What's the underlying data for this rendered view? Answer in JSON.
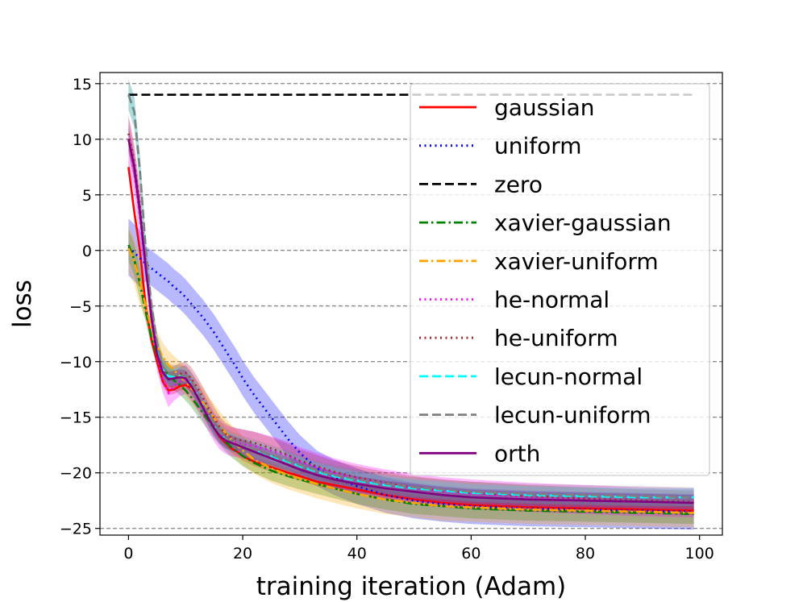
{
  "chart_data": {
    "type": "line",
    "title": "",
    "xlabel": "training iteration (Adam)",
    "ylabel": "loss",
    "xlim": [
      -5,
      104
    ],
    "ylim": [
      -25.6,
      16
    ],
    "x_ticks": [
      0,
      20,
      40,
      60,
      80,
      100
    ],
    "y_ticks": [
      15,
      10,
      5,
      0,
      -5,
      -10,
      -15,
      -20,
      -25
    ],
    "grid": "y-dashed",
    "legend_position": "upper-right",
    "x": [
      0,
      1,
      2,
      3,
      4,
      5,
      6,
      7,
      8,
      9,
      10,
      11,
      12,
      13,
      14,
      15,
      16,
      17,
      18,
      19,
      20,
      22,
      25,
      28,
      30,
      33,
      36,
      40,
      45,
      50,
      55,
      60,
      70,
      80,
      90,
      99
    ],
    "series": [
      {
        "name": "gaussian",
        "color": "#ff0000",
        "dash": "solid",
        "band": 0.4,
        "values": [
          7.5,
          3.5,
          0,
          -5,
          -8,
          -10,
          -11.8,
          -12.6,
          -12.5,
          -12.2,
          -12.1,
          -12.4,
          -13,
          -14,
          -15,
          -16,
          -16.8,
          -17.3,
          -17.8,
          -18.1,
          -18.5,
          -19,
          -19.5,
          -20,
          -20.3,
          -20.8,
          -21.1,
          -21.5,
          -22,
          -22.4,
          -22.7,
          -22.9,
          -23.1,
          -23.2,
          -23.3,
          -23.4
        ]
      },
      {
        "name": "uniform",
        "color": "#0000ff",
        "dash": "dotted",
        "band": 1.6,
        "values": [
          0.3,
          -0.2,
          -0.7,
          -1.2,
          -1.6,
          -2,
          -2.4,
          -2.8,
          -3.3,
          -3.7,
          -4.2,
          -4.8,
          -5.4,
          -6,
          -6.7,
          -7.4,
          -8.2,
          -9,
          -9.8,
          -10.6,
          -11.5,
          -13,
          -15,
          -17,
          -18.2,
          -19.6,
          -20.4,
          -21.2,
          -22,
          -22.5,
          -22.8,
          -23,
          -23.2,
          -23.3,
          -23.4,
          -23.5
        ]
      },
      {
        "name": "zero",
        "color": "#000000",
        "dash": "dashed",
        "band": 0,
        "values": [
          14,
          14,
          14,
          14,
          14,
          14,
          14,
          14,
          14,
          14,
          14,
          14,
          14,
          14,
          14,
          14,
          14,
          14,
          14,
          14,
          14,
          14,
          14,
          14,
          14,
          14,
          14,
          14,
          14,
          14,
          14,
          14,
          14,
          14,
          14,
          14
        ]
      },
      {
        "name": "xavier-gaussian",
        "color": "#008000",
        "dash": "dashdot",
        "band": 0.9,
        "values": [
          0.5,
          -0.8,
          -3,
          -5.5,
          -7.8,
          -9.5,
          -10.6,
          -11.2,
          -11.7,
          -12.1,
          -12.6,
          -13.2,
          -13.9,
          -14.6,
          -15.3,
          -16,
          -16.6,
          -17.2,
          -17.7,
          -18.1,
          -18.5,
          -19.1,
          -19.8,
          -20.3,
          -20.6,
          -21,
          -21.4,
          -21.9,
          -22.4,
          -22.8,
          -23,
          -23.2,
          -23.4,
          -23.5,
          -23.6,
          -23.7
        ]
      },
      {
        "name": "xavier-uniform",
        "color": "#ffa500",
        "dash": "dashdot",
        "band": 1.3,
        "values": [
          0.2,
          -1,
          -2.8,
          -5,
          -7,
          -8.6,
          -9.6,
          -10.3,
          -10.8,
          -11.3,
          -11.8,
          -12.4,
          -13,
          -13.7,
          -14.4,
          -15.1,
          -15.8,
          -16.4,
          -17,
          -17.5,
          -18,
          -18.8,
          -19.6,
          -20.2,
          -20.5,
          -21,
          -21.4,
          -21.9,
          -22.4,
          -22.7,
          -23,
          -23.1,
          -23.3,
          -23.4,
          -23.5,
          -23.6
        ]
      },
      {
        "name": "he-normal",
        "color": "#ff00ff",
        "dash": "dotted",
        "band": 1.3,
        "values": [
          10,
          7,
          3,
          -1.5,
          -6,
          -9.5,
          -11.5,
          -12.8,
          -12.2,
          -11.8,
          -11.6,
          -12.2,
          -13,
          -14,
          -15,
          -15.9,
          -16.6,
          -17,
          -17.2,
          -17.3,
          -17.4,
          -17.6,
          -18,
          -18.5,
          -19,
          -19.5,
          -20,
          -20.5,
          -21,
          -21.4,
          -21.7,
          -21.9,
          -22.2,
          -22.4,
          -22.6,
          -22.7
        ]
      },
      {
        "name": "he-uniform",
        "color": "#a52a2a",
        "dash": "dotted",
        "band": 1.0,
        "values": [
          10.5,
          8,
          4,
          -1,
          -5.5,
          -9,
          -10.8,
          -11.5,
          -11.4,
          -11.1,
          -11,
          -11.5,
          -12.3,
          -13.2,
          -14.2,
          -15.1,
          -15.9,
          -16.5,
          -16.8,
          -17,
          -17.1,
          -17.3,
          -17.8,
          -18.4,
          -18.9,
          -19.4,
          -19.9,
          -20.4,
          -20.9,
          -21.3,
          -21.6,
          -21.8,
          -22.1,
          -22.3,
          -22.5,
          -22.6
        ]
      },
      {
        "name": "lecun-normal",
        "color": "#00ffff",
        "dash": "dashed",
        "band": 0.8,
        "values": [
          14,
          12.5,
          7,
          0,
          -5,
          -8.5,
          -10.6,
          -11.3,
          -11.4,
          -11.3,
          -11.4,
          -12,
          -12.9,
          -13.9,
          -14.9,
          -15.8,
          -16.5,
          -17,
          -17.3,
          -17.5,
          -17.7,
          -18,
          -18.5,
          -19,
          -19.4,
          -19.9,
          -20.3,
          -20.7,
          -21.1,
          -21.4,
          -21.6,
          -21.8,
          -22,
          -22.1,
          -22.2,
          -22.2
        ]
      },
      {
        "name": "lecun-uniform",
        "color": "#808080",
        "dash": "dashed",
        "band": 0.9,
        "values": [
          14,
          12.5,
          7.2,
          0.3,
          -4.8,
          -8.3,
          -10.4,
          -11.1,
          -11.2,
          -11.2,
          -11.3,
          -11.9,
          -12.8,
          -13.8,
          -14.8,
          -15.7,
          -16.4,
          -16.9,
          -17.2,
          -17.4,
          -17.6,
          -17.9,
          -18.4,
          -18.9,
          -19.3,
          -19.8,
          -20.2,
          -20.6,
          -21,
          -21.3,
          -21.5,
          -21.7,
          -21.9,
          -22,
          -22.1,
          -22.2
        ]
      },
      {
        "name": "orth",
        "color": "#800080",
        "dash": "solid",
        "band": 0.7,
        "values": [
          10,
          7.5,
          3.5,
          -1.5,
          -6,
          -9.3,
          -11,
          -11.6,
          -11.5,
          -11.4,
          -11.5,
          -12.2,
          -13.1,
          -14.1,
          -15.1,
          -16,
          -16.7,
          -17.1,
          -17.3,
          -17.5,
          -17.7,
          -18.1,
          -18.7,
          -19.3,
          -19.7,
          -20.2,
          -20.6,
          -21,
          -21.4,
          -21.7,
          -22,
          -22.2,
          -22.4,
          -22.5,
          -22.6,
          -22.7
        ]
      }
    ]
  }
}
